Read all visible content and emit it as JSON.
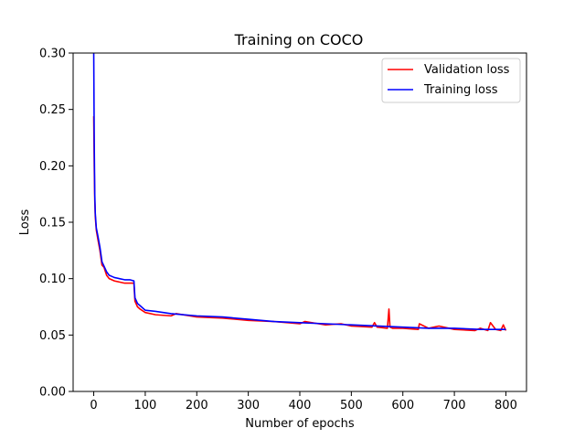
{
  "chart_data": {
    "type": "line",
    "title": "Training on COCO",
    "xlabel": "Number of epochs",
    "ylabel": "Loss",
    "xlim": [
      -40,
      840
    ],
    "ylim": [
      0,
      0.3
    ],
    "xticks": [
      0,
      100,
      200,
      300,
      400,
      500,
      600,
      700,
      800
    ],
    "yticks": [
      0.0,
      0.05,
      0.1,
      0.15,
      0.2,
      0.25,
      0.3
    ],
    "ytick_labels": [
      "0.00",
      "0.05",
      "0.10",
      "0.15",
      "0.20",
      "0.25",
      "0.30"
    ],
    "xtick_labels": [
      "0",
      "100",
      "200",
      "300",
      "400",
      "500",
      "600",
      "700",
      "800"
    ],
    "grid": false,
    "legend": {
      "placement": "top-right",
      "entries": [
        "Validation loss",
        "Training loss"
      ]
    },
    "series": [
      {
        "name": "Validation loss",
        "color": "#ff0000",
        "x": [
          0,
          1,
          2,
          3,
          5,
          8,
          12,
          16,
          20,
          25,
          30,
          35,
          40,
          50,
          60,
          70,
          78,
          80,
          85,
          90,
          100,
          120,
          150,
          160,
          200,
          250,
          300,
          350,
          400,
          410,
          450,
          480,
          500,
          540,
          545,
          550,
          570,
          573,
          575,
          580,
          600,
          630,
          632,
          650,
          670,
          700,
          740,
          750,
          765,
          770,
          780,
          790,
          795,
          800
        ],
        "y": [
          0.244,
          0.2,
          0.17,
          0.155,
          0.143,
          0.135,
          0.125,
          0.112,
          0.11,
          0.103,
          0.1,
          0.099,
          0.098,
          0.097,
          0.096,
          0.096,
          0.096,
          0.08,
          0.075,
          0.073,
          0.07,
          0.068,
          0.067,
          0.069,
          0.066,
          0.065,
          0.063,
          0.062,
          0.06,
          0.062,
          0.059,
          0.06,
          0.058,
          0.057,
          0.061,
          0.057,
          0.056,
          0.073,
          0.057,
          0.056,
          0.056,
          0.055,
          0.06,
          0.056,
          0.058,
          0.055,
          0.054,
          0.056,
          0.054,
          0.061,
          0.055,
          0.054,
          0.059,
          0.054
        ]
      },
      {
        "name": "Training loss",
        "color": "#0000ff",
        "x": [
          0,
          1,
          2,
          3,
          5,
          8,
          12,
          16,
          20,
          25,
          30,
          35,
          40,
          50,
          60,
          70,
          78,
          80,
          85,
          90,
          100,
          120,
          150,
          200,
          250,
          300,
          350,
          400,
          450,
          500,
          550,
          600,
          650,
          700,
          750,
          800
        ],
        "y": [
          0.3,
          0.22,
          0.175,
          0.158,
          0.145,
          0.138,
          0.128,
          0.115,
          0.111,
          0.106,
          0.103,
          0.102,
          0.101,
          0.1,
          0.099,
          0.099,
          0.098,
          0.083,
          0.078,
          0.076,
          0.072,
          0.071,
          0.069,
          0.067,
          0.066,
          0.064,
          0.062,
          0.061,
          0.06,
          0.059,
          0.058,
          0.057,
          0.056,
          0.056,
          0.055,
          0.055
        ]
      }
    ]
  }
}
